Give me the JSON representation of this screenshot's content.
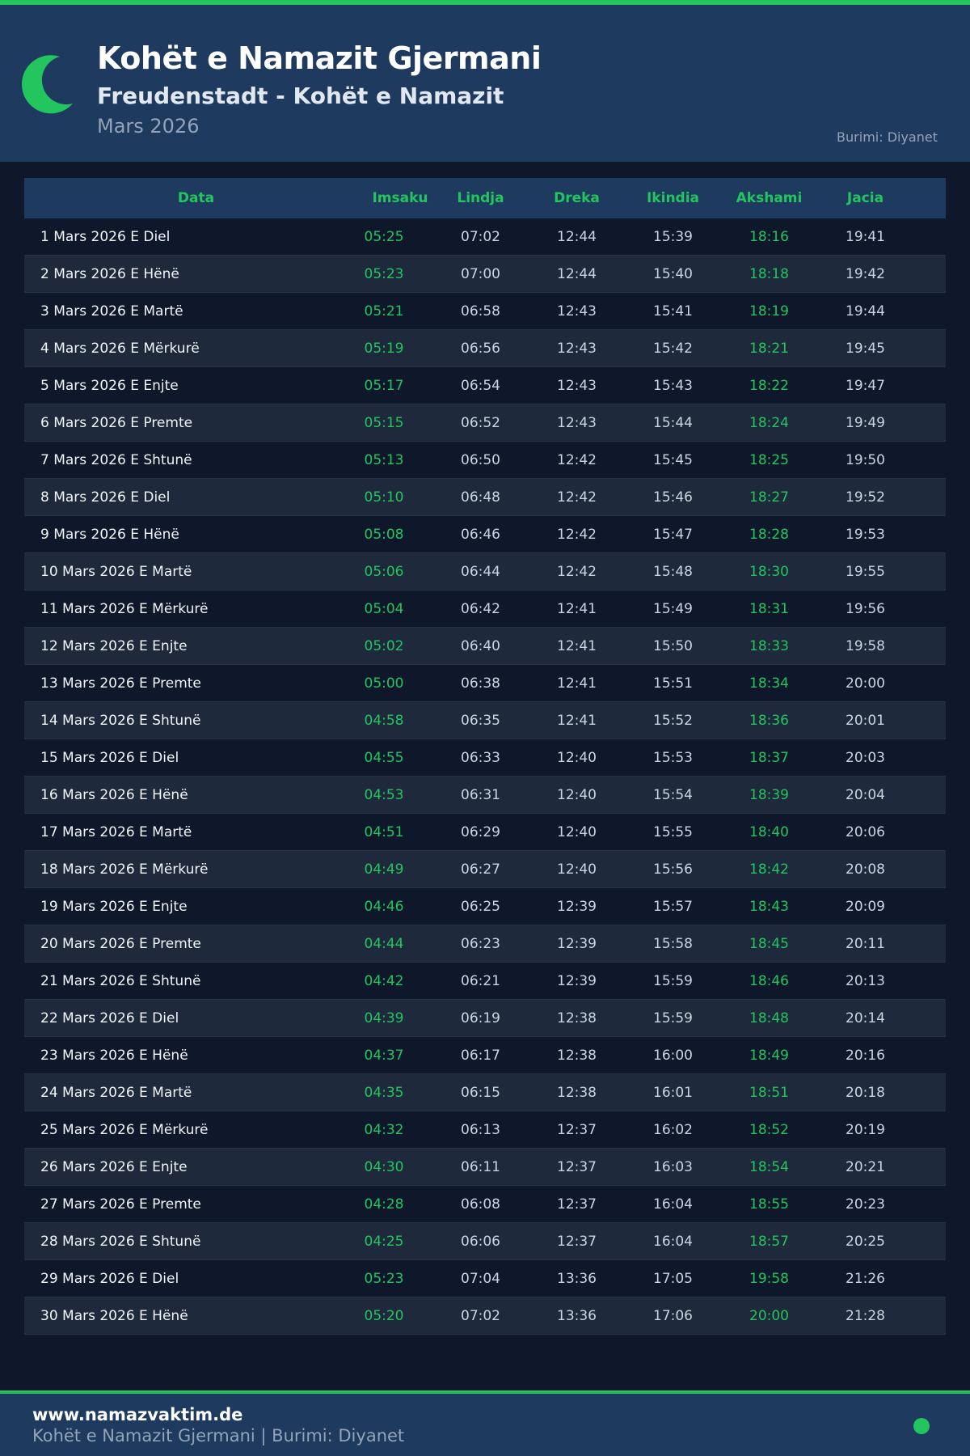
{
  "header": {
    "title": "Kohët e Namazit Gjermani",
    "subtitle": "Freudenstadt - Kohët e Namazit",
    "month": "Mars 2026",
    "source": "Burimi: Diyanet",
    "icon": "crescent-moon-icon"
  },
  "colors": {
    "accent": "#22c55e",
    "header_bg": "#1e3a5f",
    "page_bg": "#0f172a"
  },
  "table": {
    "columns": [
      "Data",
      "Imsaku",
      "Lindja",
      "Dreka",
      "Ikindia",
      "Akshami",
      "Jacia"
    ],
    "rows": [
      [
        "1 Mars 2026 E Diel",
        "05:25",
        "07:02",
        "12:44",
        "15:39",
        "18:16",
        "19:41"
      ],
      [
        "2 Mars 2026 E Hënë",
        "05:23",
        "07:00",
        "12:44",
        "15:40",
        "18:18",
        "19:42"
      ],
      [
        "3 Mars 2026 E Martë",
        "05:21",
        "06:58",
        "12:43",
        "15:41",
        "18:19",
        "19:44"
      ],
      [
        "4 Mars 2026 E Mërkurë",
        "05:19",
        "06:56",
        "12:43",
        "15:42",
        "18:21",
        "19:45"
      ],
      [
        "5 Mars 2026 E Enjte",
        "05:17",
        "06:54",
        "12:43",
        "15:43",
        "18:22",
        "19:47"
      ],
      [
        "6 Mars 2026 E Premte",
        "05:15",
        "06:52",
        "12:43",
        "15:44",
        "18:24",
        "19:49"
      ],
      [
        "7 Mars 2026 E Shtunë",
        "05:13",
        "06:50",
        "12:42",
        "15:45",
        "18:25",
        "19:50"
      ],
      [
        "8 Mars 2026 E Diel",
        "05:10",
        "06:48",
        "12:42",
        "15:46",
        "18:27",
        "19:52"
      ],
      [
        "9 Mars 2026 E Hënë",
        "05:08",
        "06:46",
        "12:42",
        "15:47",
        "18:28",
        "19:53"
      ],
      [
        "10 Mars 2026 E Martë",
        "05:06",
        "06:44",
        "12:42",
        "15:48",
        "18:30",
        "19:55"
      ],
      [
        "11 Mars 2026 E Mërkurë",
        "05:04",
        "06:42",
        "12:41",
        "15:49",
        "18:31",
        "19:56"
      ],
      [
        "12 Mars 2026 E Enjte",
        "05:02",
        "06:40",
        "12:41",
        "15:50",
        "18:33",
        "19:58"
      ],
      [
        "13 Mars 2026 E Premte",
        "05:00",
        "06:38",
        "12:41",
        "15:51",
        "18:34",
        "20:00"
      ],
      [
        "14 Mars 2026 E Shtunë",
        "04:58",
        "06:35",
        "12:41",
        "15:52",
        "18:36",
        "20:01"
      ],
      [
        "15 Mars 2026 E Diel",
        "04:55",
        "06:33",
        "12:40",
        "15:53",
        "18:37",
        "20:03"
      ],
      [
        "16 Mars 2026 E Hënë",
        "04:53",
        "06:31",
        "12:40",
        "15:54",
        "18:39",
        "20:04"
      ],
      [
        "17 Mars 2026 E Martë",
        "04:51",
        "06:29",
        "12:40",
        "15:55",
        "18:40",
        "20:06"
      ],
      [
        "18 Mars 2026 E Mërkurë",
        "04:49",
        "06:27",
        "12:40",
        "15:56",
        "18:42",
        "20:08"
      ],
      [
        "19 Mars 2026 E Enjte",
        "04:46",
        "06:25",
        "12:39",
        "15:57",
        "18:43",
        "20:09"
      ],
      [
        "20 Mars 2026 E Premte",
        "04:44",
        "06:23",
        "12:39",
        "15:58",
        "18:45",
        "20:11"
      ],
      [
        "21 Mars 2026 E Shtunë",
        "04:42",
        "06:21",
        "12:39",
        "15:59",
        "18:46",
        "20:13"
      ],
      [
        "22 Mars 2026 E Diel",
        "04:39",
        "06:19",
        "12:38",
        "15:59",
        "18:48",
        "20:14"
      ],
      [
        "23 Mars 2026 E Hënë",
        "04:37",
        "06:17",
        "12:38",
        "16:00",
        "18:49",
        "20:16"
      ],
      [
        "24 Mars 2026 E Martë",
        "04:35",
        "06:15",
        "12:38",
        "16:01",
        "18:51",
        "20:18"
      ],
      [
        "25 Mars 2026 E Mërkurë",
        "04:32",
        "06:13",
        "12:37",
        "16:02",
        "18:52",
        "20:19"
      ],
      [
        "26 Mars 2026 E Enjte",
        "04:30",
        "06:11",
        "12:37",
        "16:03",
        "18:54",
        "20:21"
      ],
      [
        "27 Mars 2026 E Premte",
        "04:28",
        "06:08",
        "12:37",
        "16:04",
        "18:55",
        "20:23"
      ],
      [
        "28 Mars 2026 E Shtunë",
        "04:25",
        "06:06",
        "12:37",
        "16:04",
        "18:57",
        "20:25"
      ],
      [
        "29 Mars 2026 E Diel",
        "05:23",
        "07:04",
        "13:36",
        "17:05",
        "19:58",
        "21:26"
      ],
      [
        "30 Mars 2026 E Hënë",
        "05:20",
        "07:02",
        "13:36",
        "17:06",
        "20:00",
        "21:28"
      ]
    ]
  },
  "footer": {
    "site": "www.namazvaktim.de",
    "text": "Kohët e Namazit Gjermani | Burimi: Diyanet"
  }
}
